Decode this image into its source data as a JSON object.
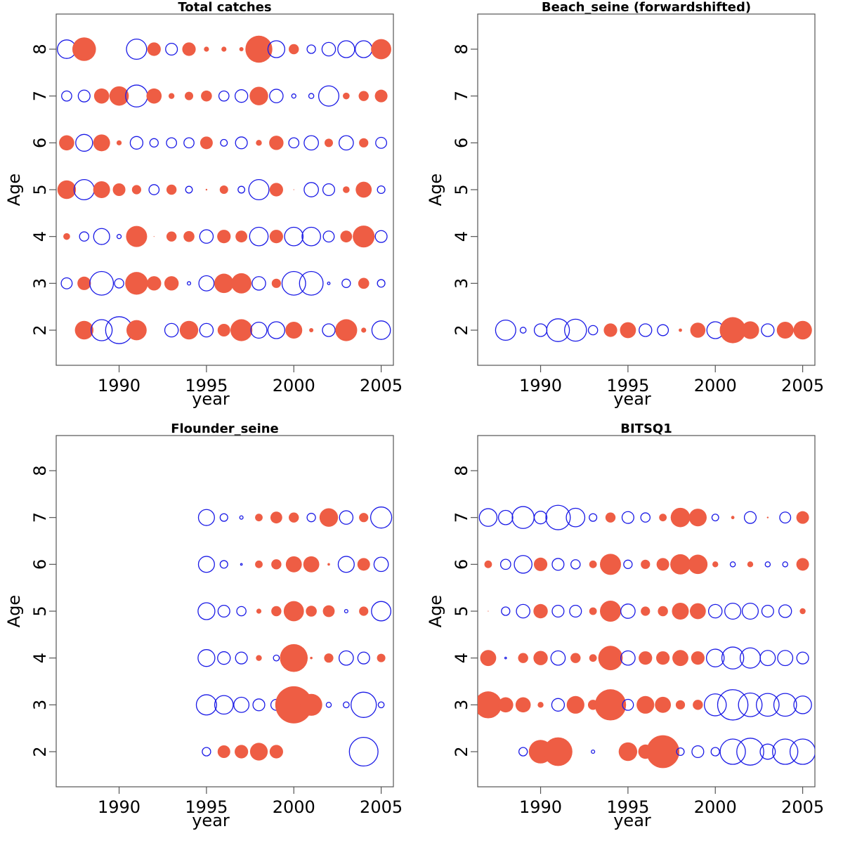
{
  "chart_data": [
    {
      "type": "scatter",
      "subtype": "bubble-residuals",
      "title": "Total catches",
      "xlabel": "year",
      "ylabel": "Age",
      "xlim": [
        1986.4,
        2005.7
      ],
      "ylim": [
        1.25,
        8.75
      ],
      "xticks": [
        1990,
        1995,
        2000,
        2005
      ],
      "yticks": [
        2,
        3,
        4,
        5,
        6,
        7,
        8
      ],
      "years": [
        1987,
        1988,
        1989,
        1990,
        1991,
        1992,
        1993,
        1994,
        1995,
        1996,
        1997,
        1998,
        1999,
        2000,
        2001,
        2002,
        2003,
        2004,
        2005
      ],
      "rows": [
        {
          "age": 8,
          "values": [
            -1.1,
            1.4,
            null,
            null,
            -1.2,
            0.8,
            -0.7,
            0.8,
            0.3,
            0.3,
            0.25,
            1.6,
            -1.0,
            0.6,
            -0.5,
            -0.8,
            -1.0,
            -1.0,
            1.2
          ]
        },
        {
          "age": 7,
          "values": [
            -0.6,
            -0.7,
            0.9,
            1.15,
            -1.3,
            0.9,
            0.35,
            0.5,
            0.65,
            -0.6,
            -0.75,
            1.1,
            -0.8,
            -0.25,
            -0.3,
            -1.2,
            0.4,
            0.6,
            0.75
          ]
        },
        {
          "age": 6,
          "values": [
            0.9,
            -1.0,
            1.0,
            0.3,
            -0.75,
            -0.5,
            -0.6,
            -0.6,
            0.75,
            -0.4,
            -0.7,
            0.35,
            0.85,
            -0.6,
            -0.85,
            0.5,
            -0.85,
            0.55,
            -0.65
          ]
        },
        {
          "age": 5,
          "values": [
            1.1,
            -1.2,
            1.0,
            0.75,
            0.55,
            -0.6,
            0.6,
            -0.4,
            0.1,
            0.5,
            -0.4,
            -1.2,
            0.8,
            0.05,
            -0.85,
            -0.7,
            0.4,
            0.95,
            -0.45
          ]
        },
        {
          "age": 4,
          "values": [
            0.4,
            -0.55,
            -0.95,
            -0.25,
            1.25,
            0.05,
            0.6,
            0.65,
            -0.8,
            0.8,
            0.7,
            -1.1,
            0.8,
            -1.1,
            -1.1,
            -0.65,
            0.7,
            1.3,
            -0.7
          ]
        },
        {
          "age": 3,
          "values": [
            -0.65,
            0.8,
            -1.4,
            -0.55,
            1.35,
            0.85,
            0.85,
            -0.2,
            -0.9,
            1.15,
            1.2,
            -0.8,
            0.55,
            -1.4,
            -1.4,
            -0.15,
            -0.5,
            0.65,
            -0.45
          ]
        },
        {
          "age": 2,
          "values": [
            null,
            1.1,
            -1.25,
            -1.6,
            1.2,
            null,
            -0.8,
            1.1,
            -0.8,
            0.75,
            1.3,
            -0.95,
            -1.0,
            1.0,
            0.25,
            -0.75,
            1.3,
            0.3,
            -1.1
          ]
        }
      ]
    },
    {
      "type": "scatter",
      "subtype": "bubble-residuals",
      "title": "Beach_seine (forwardshifted)",
      "xlabel": "year",
      "ylabel": "Age",
      "xlim": [
        1986.4,
        2005.7
      ],
      "ylim": [
        1.25,
        8.75
      ],
      "xticks": [
        1990,
        1995,
        2000,
        2005
      ],
      "yticks": [
        2,
        3,
        4,
        5,
        6,
        7,
        8
      ],
      "years": [
        1988,
        1989,
        1990,
        1991,
        1992,
        1993,
        1994,
        1995,
        1996,
        1997,
        1998,
        1999,
        2000,
        2001,
        2002,
        2003,
        2004,
        2005
      ],
      "rows": [
        {
          "age": 2,
          "values": [
            -1.2,
            -0.35,
            -0.75,
            -1.35,
            -1.3,
            -0.55,
            0.8,
            0.95,
            -0.75,
            -0.65,
            0.2,
            0.9,
            -1.0,
            1.55,
            1.05,
            -0.75,
            1.0,
            1.1
          ]
        }
      ]
    },
    {
      "type": "scatter",
      "subtype": "bubble-residuals",
      "title": "Flounder_seine",
      "xlabel": "year",
      "ylabel": "Age",
      "xlim": [
        1986.4,
        2005.7
      ],
      "ylim": [
        1.25,
        8.75
      ],
      "xticks": [
        1990,
        1995,
        2000,
        2005
      ],
      "yticks": [
        2,
        3,
        4,
        5,
        6,
        7,
        8
      ],
      "years": [
        1995,
        1996,
        1997,
        1998,
        1999,
        2000,
        2001,
        2002,
        2003,
        2004,
        2005
      ],
      "rows": [
        {
          "age": 7,
          "values": [
            -0.95,
            -0.45,
            -0.2,
            0.45,
            0.7,
            0.6,
            -0.5,
            1.1,
            -0.8,
            0.55,
            -1.25
          ]
        },
        {
          "age": 6,
          "values": [
            -0.95,
            -0.45,
            -0.1,
            0.45,
            0.6,
            0.95,
            0.95,
            0.15,
            -0.95,
            0.75,
            -0.85
          ]
        },
        {
          "age": 5,
          "values": [
            -1.0,
            -0.7,
            -0.55,
            0.3,
            0.6,
            1.2,
            0.65,
            0.7,
            -0.2,
            0.55,
            -1.15
          ]
        },
        {
          "age": 4,
          "values": [
            -1.0,
            -0.75,
            -0.7,
            0.35,
            -0.35,
            1.65,
            0.15,
            0.55,
            -0.85,
            -0.7,
            0.5
          ]
        },
        {
          "age": 3,
          "values": [
            -1.2,
            -1.1,
            -0.9,
            -0.7,
            -0.65,
            2.2,
            1.3,
            -0.3,
            -0.35,
            -1.5,
            -0.35
          ]
        },
        {
          "age": 2,
          "values": [
            -0.5,
            0.75,
            0.8,
            1.05,
            0.8,
            null,
            null,
            null,
            null,
            -1.7,
            null
          ]
        }
      ]
    },
    {
      "type": "scatter",
      "subtype": "bubble-residuals",
      "title": "BITSQ1",
      "xlabel": "year",
      "ylabel": "Age",
      "xlim": [
        1986.4,
        2005.7
      ],
      "ylim": [
        1.25,
        8.75
      ],
      "xticks": [
        1990,
        1995,
        2000,
        2005
      ],
      "yticks": [
        2,
        3,
        4,
        5,
        6,
        7,
        8
      ],
      "years": [
        1987,
        1988,
        1989,
        1990,
        1991,
        1992,
        1993,
        1994,
        1995,
        1996,
        1997,
        1998,
        1999,
        2000,
        2001,
        2002,
        2003,
        2004,
        2005
      ],
      "rows": [
        {
          "age": 7,
          "values": [
            -1.05,
            -0.85,
            -1.3,
            -0.75,
            -1.45,
            -1.1,
            -0.45,
            0.6,
            -0.7,
            -0.55,
            0.45,
            1.15,
            1.05,
            -0.4,
            0.2,
            -0.7,
            0.1,
            -0.65,
            0.75
          ]
        },
        {
          "age": 6,
          "values": [
            0.45,
            -0.6,
            -1.05,
            0.8,
            -0.7,
            -0.55,
            0.45,
            1.25,
            -0.5,
            0.55,
            0.75,
            1.2,
            1.15,
            0.35,
            -0.3,
            0.35,
            -0.3,
            -0.3,
            0.75
          ]
        },
        {
          "age": 5,
          "values": [
            0.05,
            -0.5,
            -0.8,
            0.85,
            -0.7,
            -0.7,
            0.45,
            1.25,
            -0.85,
            0.55,
            0.6,
            1.0,
            0.95,
            -0.8,
            -0.95,
            -0.95,
            -0.7,
            -0.75,
            0.35
          ]
        },
        {
          "age": 4,
          "values": [
            0.95,
            -0.1,
            0.6,
            0.85,
            -0.85,
            0.6,
            0.45,
            1.45,
            -0.85,
            0.8,
            0.8,
            0.95,
            0.8,
            -1.05,
            -1.3,
            -1.2,
            -0.9,
            -0.9,
            -0.7
          ]
        },
        {
          "age": 3,
          "values": [
            1.6,
            0.9,
            0.9,
            0.35,
            -0.75,
            1.05,
            0.6,
            1.85,
            -0.65,
            1.05,
            0.95,
            0.55,
            0.6,
            -1.3,
            -1.8,
            -1.4,
            -1.35,
            -1.35,
            -1.05
          ]
        },
        {
          "age": 2,
          "values": [
            null,
            null,
            -0.5,
            1.4,
            1.7,
            null,
            -0.2,
            null,
            1.1,
            0.85,
            1.95,
            -0.45,
            -0.7,
            -0.5,
            -1.5,
            -1.6,
            -0.9,
            -1.5,
            -1.5
          ]
        }
      ]
    }
  ],
  "colors": {
    "positive_fill": "#EE5D44",
    "negative_stroke": "#1A1AE6"
  },
  "legend": "none"
}
